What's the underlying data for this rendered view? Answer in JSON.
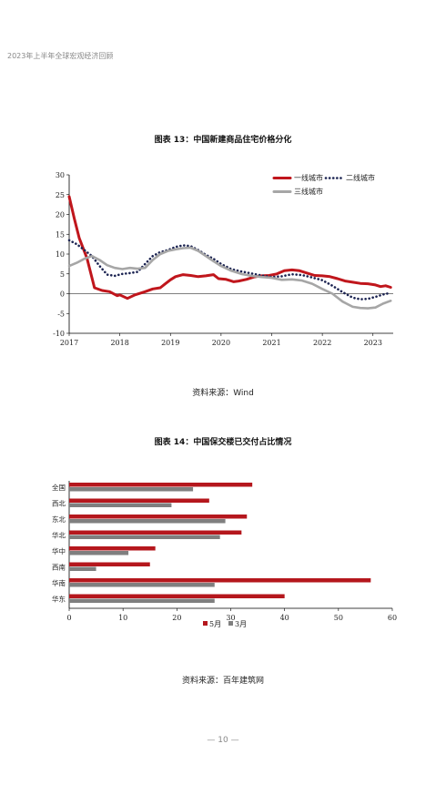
{
  "header": {
    "title": "2023年上半年全球宏观经济回顾"
  },
  "figure13": {
    "title": "图表 13：中国新建商品住宅价格分化",
    "source": "资料来源：Wind"
  },
  "figure14": {
    "title": "图表 14：中国保交楼已交付占比情况",
    "source": "资料来源：百年建筑网"
  },
  "page_number": "— 10 —",
  "chart_data": [
    {
      "type": "line",
      "title": "",
      "xlabel": "",
      "ylabel": "",
      "xlim": [
        2017.0,
        2023.4
      ],
      "ylim": [
        -10,
        30
      ],
      "x_ticks": [
        "2017",
        "2018",
        "2019",
        "2020",
        "2021",
        "2022",
        "2023"
      ],
      "y_ticks": [
        "-10",
        "-5",
        "0",
        "5",
        "10",
        "15",
        "20",
        "25",
        "30"
      ],
      "legend_position": "top-right",
      "series": [
        {
          "name": "一线城市",
          "color": "#c0161c",
          "style": "solid",
          "x": [
            2017.0,
            2017.1,
            2017.2,
            2017.35,
            2017.5,
            2017.65,
            2017.8,
            2017.95,
            2018.0,
            2018.15,
            2018.3,
            2018.5,
            2018.65,
            2018.8,
            2018.9,
            2019.0,
            2019.1,
            2019.25,
            2019.4,
            2019.55,
            2019.7,
            2019.85,
            2019.95,
            2020.1,
            2020.25,
            2020.35,
            2020.5,
            2020.65,
            2020.8,
            2020.95,
            2021.1,
            2021.25,
            2021.4,
            2021.55,
            2021.7,
            2021.85,
            2022.0,
            2022.15,
            2022.3,
            2022.45,
            2022.6,
            2022.75,
            2022.9,
            2023.05,
            2023.15,
            2023.25,
            2023.35
          ],
          "y": [
            24.5,
            19,
            14,
            9,
            1.5,
            0.8,
            0.5,
            -0.5,
            -0.3,
            -1.2,
            -0.3,
            0.5,
            1.2,
            1.5,
            2.5,
            3.5,
            4.3,
            4.8,
            4.6,
            4.3,
            4.5,
            4.8,
            3.8,
            3.6,
            3,
            3.2,
            3.6,
            4.2,
            4.5,
            4.6,
            5,
            5.8,
            6,
            5.8,
            5.2,
            4.6,
            4.5,
            4.3,
            3.8,
            3.2,
            2.9,
            2.6,
            2.5,
            2.2,
            1.8,
            2.0,
            1.6
          ]
        },
        {
          "name": "二线城市",
          "color": "#1c2452",
          "style": "dotted",
          "x": [
            2017.0,
            2017.15,
            2017.3,
            2017.45,
            2017.6,
            2017.75,
            2017.9,
            2018.05,
            2018.2,
            2018.35,
            2018.5,
            2018.65,
            2018.8,
            2018.95,
            2019.1,
            2019.25,
            2019.4,
            2019.55,
            2019.7,
            2019.85,
            2020.0,
            2020.2,
            2020.4,
            2020.6,
            2020.8,
            2021.0,
            2021.2,
            2021.4,
            2021.6,
            2021.8,
            2022.0,
            2022.2,
            2022.4,
            2022.6,
            2022.75,
            2022.9,
            2023.05,
            2023.2,
            2023.35
          ],
          "y": [
            13.5,
            12.5,
            11,
            9.5,
            7,
            4.8,
            4.5,
            5,
            5.2,
            5.5,
            7.5,
            9.5,
            10.5,
            11,
            11.8,
            12.2,
            12,
            11,
            9.8,
            8.8,
            7.5,
            6.2,
            5.6,
            5.1,
            4.6,
            4.2,
            4.4,
            4.9,
            4.7,
            4.1,
            3.4,
            2,
            0.4,
            -1,
            -1.4,
            -1.3,
            -0.8,
            -0.2,
            0.2
          ]
        },
        {
          "name": "三线城市",
          "color": "#a6a6a6",
          "style": "solid",
          "x": [
            2017.0,
            2017.15,
            2017.3,
            2017.45,
            2017.6,
            2017.75,
            2017.9,
            2018.05,
            2018.2,
            2018.35,
            2018.5,
            2018.65,
            2018.8,
            2018.95,
            2019.1,
            2019.25,
            2019.4,
            2019.55,
            2019.7,
            2019.85,
            2020.0,
            2020.2,
            2020.4,
            2020.6,
            2020.8,
            2021.0,
            2021.2,
            2021.4,
            2021.6,
            2021.8,
            2022.0,
            2022.2,
            2022.4,
            2022.6,
            2022.75,
            2022.9,
            2023.05,
            2023.2,
            2023.35
          ],
          "y": [
            7,
            7.8,
            8.8,
            9.5,
            8.5,
            7.2,
            6.5,
            6.2,
            6.5,
            6.3,
            6.5,
            8.5,
            10,
            10.8,
            11.2,
            11.5,
            11.6,
            10.8,
            9.5,
            8.2,
            7,
            5.8,
            5,
            4.5,
            4.2,
            4,
            3.5,
            3.6,
            3.3,
            2.5,
            1.2,
            0,
            -2,
            -3.3,
            -3.6,
            -3.7,
            -3.5,
            -2.5,
            -1.8
          ]
        }
      ]
    },
    {
      "type": "bar",
      "orientation": "horizontal",
      "title": "",
      "categories": [
        "全国",
        "西北",
        "东北",
        "华北",
        "华中",
        "西南",
        "华南",
        "华东"
      ],
      "xlim": [
        0,
        60
      ],
      "x_ticks": [
        "0",
        "10",
        "20",
        "30",
        "40",
        "50",
        "60"
      ],
      "legend_position": "bottom",
      "series": [
        {
          "name": "5月",
          "color": "#b5171d",
          "values": [
            34,
            26,
            33,
            32,
            16,
            15,
            56,
            40
          ]
        },
        {
          "name": "3月",
          "color": "#7f7f7f",
          "values": [
            23,
            19,
            29,
            28,
            11,
            5,
            27,
            27
          ]
        }
      ]
    }
  ]
}
